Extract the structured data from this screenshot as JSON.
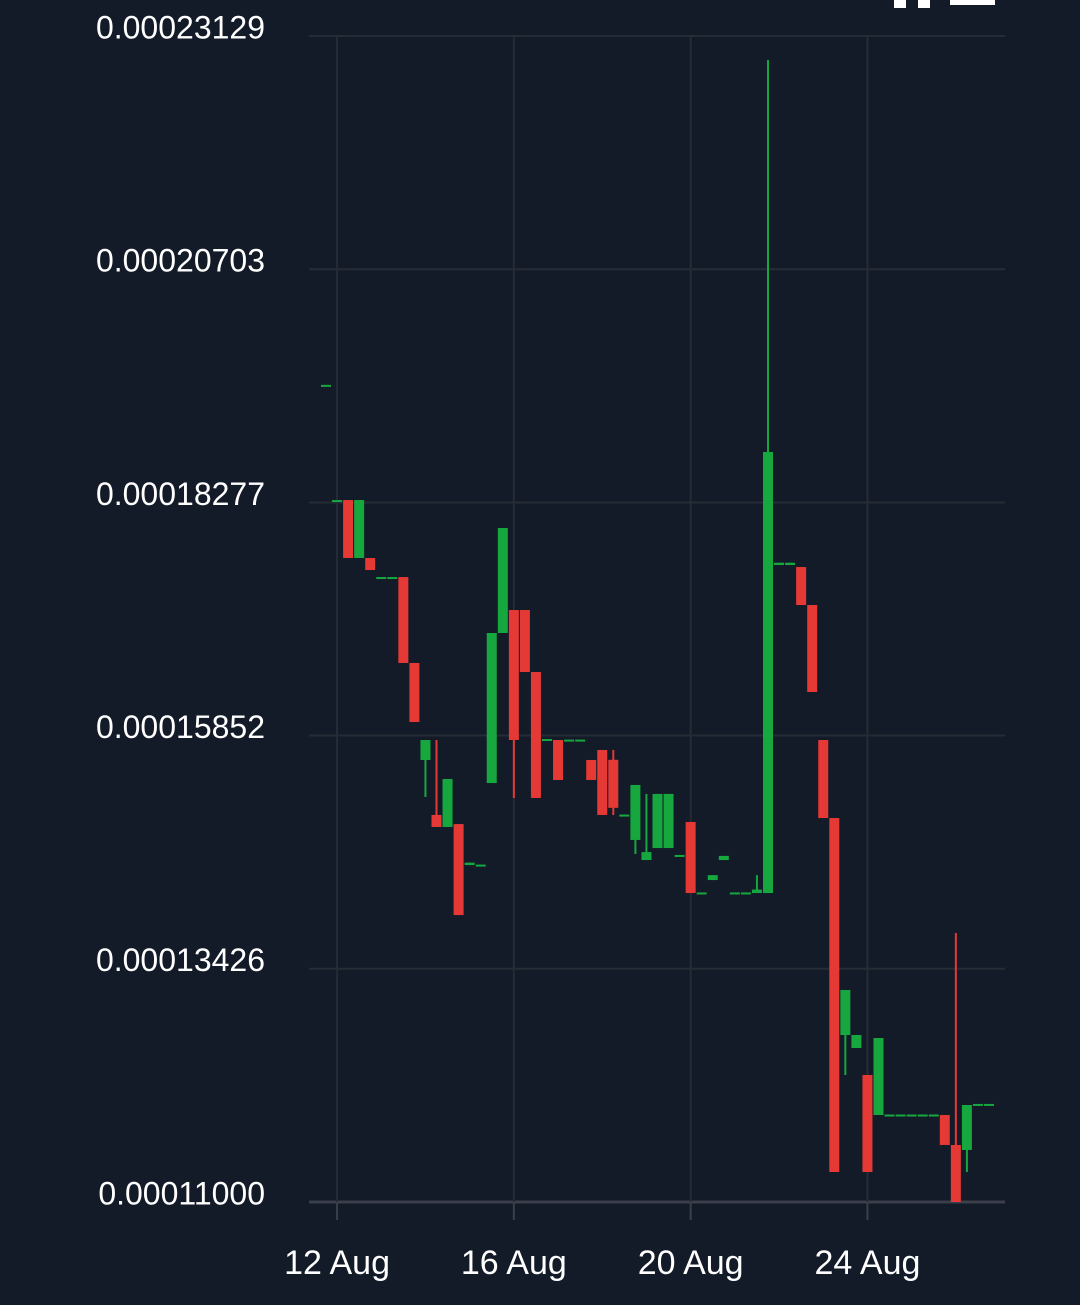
{
  "chart_data": {
    "type": "candlestick",
    "grid": true,
    "up_color": "#16a83e",
    "down_color": "#e53935",
    "ylim": [
      0.00011,
      0.00023129
    ],
    "yticks": [
      {
        "value": 0.00011,
        "label": "0.00011000"
      },
      0.00013426,
      0.00015852,
      0.00018277,
      0.00020703,
      0.00023129
    ],
    "categories": [
      null,
      "12 Aug",
      null,
      null,
      null,
      null,
      null,
      null,
      null,
      null,
      null,
      null,
      null,
      null,
      null,
      null,
      null,
      "16 Aug",
      null,
      null,
      null,
      null,
      null,
      null,
      null,
      null,
      null,
      null,
      null,
      null,
      null,
      null,
      null,
      "20 Aug",
      null,
      null,
      null,
      null,
      null,
      null,
      null,
      null,
      null,
      null,
      null,
      null,
      null,
      null,
      null,
      "24 Aug",
      null,
      null,
      null,
      null,
      null,
      null,
      null,
      null,
      null,
      null,
      null
    ],
    "open": [
      0.00019498,
      0.00018302,
      0.00018302,
      0.00017699,
      0.00017699,
      0.00017501,
      0.00017501,
      0.00017501,
      0.00016607,
      0.00015598,
      0.00015026,
      0.00014901,
      0.00014931,
      0.00014505,
      0.00014505,
      0.00015358,
      0.00016919,
      0.00017158,
      0.00017158,
      0.00016513,
      0.00015806,
      0.00015806,
      0.00015806,
      0.00015806,
      0.00015598,
      0.00015702,
      0.000156,
      0.00015026,
      0.00014766,
      0.00014557,
      0.00014682,
      0.00014682,
      0.000146,
      0.00014953,
      0.00014214,
      0.00014349,
      0.00014557,
      0.00014214,
      0.00014214,
      0.00014214,
      0.00014214,
      0.00017626,
      0.00017626,
      0.00017605,
      0.0001721,
      0.00015806,
      0.00014994,
      0.00012737,
      0.00012602,
      0.00012321,
      0.00011905,
      0.00011905,
      0.00011905,
      0.00011905,
      0.00011905,
      0.00011905,
      0.00011905,
      0.00011593,
      0.00011541,
      0.00012009,
      0.00012009
    ],
    "high": [
      0.000195,
      0.00018302,
      0.00018302,
      0.00018302,
      0.00017699,
      0.00017501,
      0.00017501,
      0.00017501,
      0.00016607,
      0.00015806,
      0.00015806,
      0.000154,
      0.00014931,
      0.0001453,
      0.0001451,
      0.00016919,
      0.00018011,
      0.00017158,
      0.00017158,
      0.00016513,
      0.00015816,
      0.00015806,
      0.0001581,
      0.0001581,
      0.00015598,
      0.00015702,
      0.00015702,
      0.0001503,
      0.00015338,
      0.00015245,
      0.00015245,
      0.00015245,
      0.0001461,
      0.00014953,
      0.0001422,
      0.000144,
      0.000146,
      0.0001422,
      0.0001422,
      0.000144,
      0.00022879,
      0.0001765,
      0.0001765,
      0.00017605,
      0.0001721,
      0.00015806,
      0.00014994,
      0.00013205,
      0.00012737,
      0.00012321,
      0.00012706,
      0.0001191,
      0.0001191,
      0.0001191,
      0.0001191,
      0.0001191,
      0.00011905,
      0.00013798,
      0.00012009,
      0.0001202,
      0.0001202
    ],
    "low": [
      0.00019498,
      0.00018302,
      0.00017699,
      0.00017699,
      0.00017574,
      0.00017501,
      0.00017501,
      0.00016607,
      0.00015993,
      0.00015213,
      0.00014901,
      0.00014901,
      0.00013985,
      0.00014505,
      0.00014505,
      0.00015358,
      0.00016919,
      0.00015203,
      0.00016513,
      0.00015203,
      0.00015806,
      0.0001539,
      0.00015806,
      0.00015806,
      0.0001539,
      0.00015026,
      0.00015026,
      0.00015026,
      0.0001462,
      0.00014557,
      0.00014682,
      0.00014682,
      0.000146,
      0.00014214,
      0.00014214,
      0.00014349,
      0.00014557,
      0.00014214,
      0.00014214,
      0.00014214,
      0.00014214,
      0.00017626,
      0.00017626,
      0.0001721,
      0.00016305,
      0.00014994,
      0.00011312,
      0.00012321,
      0.00012602,
      0.00011312,
      0.00011905,
      0.00011905,
      0.00011905,
      0.00011905,
      0.00011905,
      0.00011905,
      0.00011593,
      0.00011,
      0.00011312,
      0.00012009,
      0.00012009
    ],
    "close": [
      0.000195,
      0.00018302,
      0.00017699,
      0.00018302,
      0.00017574,
      0.00017501,
      0.00017501,
      0.00016607,
      0.00015993,
      0.00015806,
      0.00014901,
      0.000154,
      0.00013985,
      0.0001453,
      0.0001451,
      0.00016919,
      0.00018011,
      0.00015806,
      0.00016513,
      0.00015203,
      0.00015816,
      0.0001539,
      0.0001581,
      0.0001581,
      0.0001539,
      0.00015026,
      0.000151,
      0.0001503,
      0.00015338,
      0.0001464,
      0.00015245,
      0.00015245,
      0.0001461,
      0.00014214,
      0.0001422,
      0.000144,
      0.000146,
      0.0001422,
      0.0001422,
      0.0001425,
      0.00018802,
      0.0001765,
      0.0001765,
      0.0001721,
      0.00016305,
      0.00014994,
      0.00011312,
      0.00013205,
      0.00012737,
      0.00011312,
      0.00012706,
      0.0001191,
      0.0001191,
      0.0001191,
      0.0001191,
      0.0001191,
      0.00011593,
      0.00011,
      0.00012009,
      0.0001202,
      0.0001202
    ]
  }
}
